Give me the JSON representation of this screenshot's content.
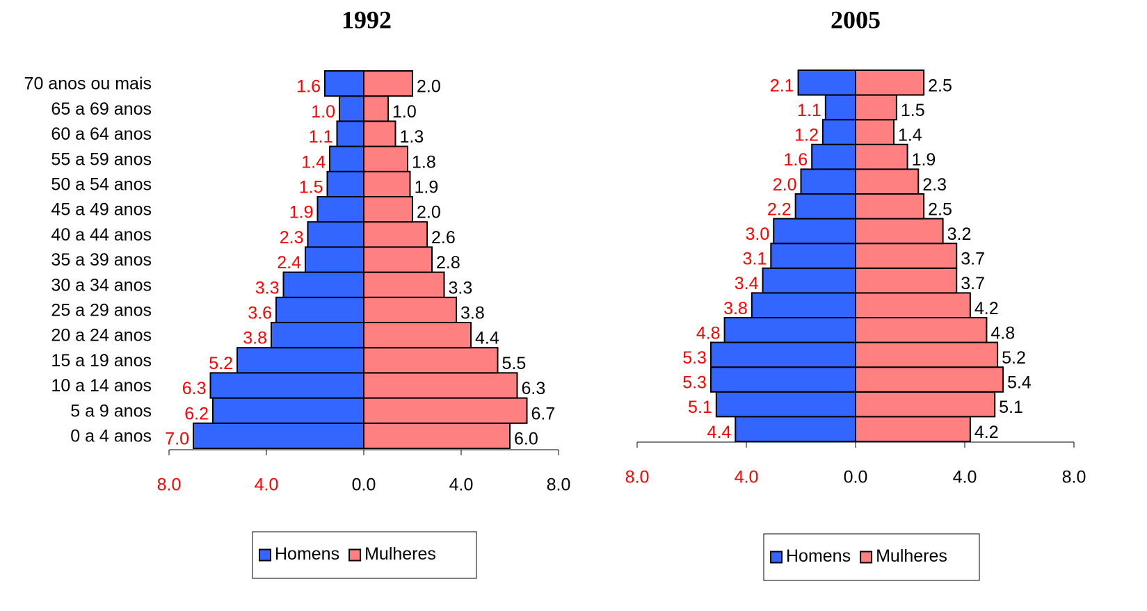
{
  "chart_data": [
    {
      "type": "pyramid",
      "title": "1992",
      "categories": [
        "0 a 4 anos",
        "5 a 9 anos",
        "10 a 14 anos",
        "15 a 19 anos",
        "20 a 24 anos",
        "25 a 29 anos",
        "30 a 34 anos",
        "35 a 39 anos",
        "40 a 44 anos",
        "45 a 49 anos",
        "50 a 54 anos",
        "55 a 59 anos",
        "60 a 64 anos",
        "65 a 69 anos",
        "70 anos ou mais"
      ],
      "series": [
        {
          "name": "Homens",
          "color": "#3366ff",
          "label_color": "#ff0000",
          "side": "left",
          "values": [
            7.0,
            6.2,
            6.3,
            5.2,
            3.8,
            3.6,
            3.3,
            2.4,
            2.3,
            1.9,
            1.5,
            1.4,
            1.1,
            1.0,
            1.6
          ],
          "value_labels": [
            "7.0",
            "6.2",
            "6.3",
            "5.2",
            "3.8",
            "3.6",
            "3.3",
            "2.4",
            "2.3",
            "1.9",
            "1.5",
            "1.4",
            "1.1",
            "1.0",
            "1.6"
          ]
        },
        {
          "name": "Mulheres",
          "color": "#ff8080",
          "label_color": "#000000",
          "side": "right",
          "values": [
            6.0,
            6.7,
            6.3,
            5.5,
            4.4,
            3.8,
            3.3,
            2.8,
            2.6,
            2.0,
            1.9,
            1.8,
            1.3,
            1.0,
            2.0
          ],
          "value_labels": [
            "6.0",
            "6.7",
            "6.3",
            "5.5",
            "4.4",
            "3.8",
            "3.3",
            "2.8",
            "2.6",
            "2.0",
            "1.9",
            "1.8",
            "1.3",
            "1.0",
            "2.0"
          ]
        }
      ],
      "xlim": [
        -8,
        8
      ],
      "xticks": [
        {
          "value": -8,
          "label": "8.0"
        },
        {
          "value": -4,
          "label": "4.0"
        },
        {
          "value": 0,
          "label": "0.0"
        },
        {
          "value": 4,
          "label": "4.0"
        },
        {
          "value": 8,
          "label": "8.0"
        }
      ]
    },
    {
      "type": "pyramid",
      "title": "2005",
      "series": [
        {
          "name": "Homens",
          "color": "#3366ff",
          "label_color": "#ff0000",
          "side": "left",
          "values": [
            4.4,
            5.1,
            5.3,
            5.3,
            4.8,
            3.8,
            3.4,
            3.1,
            3.0,
            2.2,
            2.0,
            1.6,
            1.2,
            1.1,
            2.1
          ],
          "value_labels": [
            "4.4",
            "5.1",
            "5.3",
            "5.3",
            "4.8",
            "3.8",
            "3.4",
            "3.1",
            "3.0",
            "2.2",
            "2.0",
            "1.6",
            "1.2",
            "1.1",
            "2.1"
          ]
        },
        {
          "name": "Mulheres",
          "color": "#ff8080",
          "label_color": "#000000",
          "side": "right",
          "values": [
            4.2,
            5.1,
            5.4,
            5.2,
            4.8,
            4.2,
            3.7,
            3.7,
            3.2,
            2.5,
            2.3,
            1.9,
            1.4,
            1.5,
            2.5
          ],
          "value_labels": [
            "4.2",
            "5.1",
            "5.4",
            "5.2",
            "4.8",
            "4.2",
            "3.7",
            "3.7",
            "3.2",
            "2.5",
            "2.3",
            "1.9",
            "1.4",
            "1.5",
            "2.5"
          ]
        }
      ],
      "xlim": [
        -8,
        8
      ],
      "xticks": [
        {
          "value": -8,
          "label": "8.0"
        },
        {
          "value": -4,
          "label": "4.0"
        },
        {
          "value": 0,
          "label": "0.0"
        },
        {
          "value": 4,
          "label": "4.0"
        },
        {
          "value": 8,
          "label": "8.0"
        }
      ]
    }
  ]
}
